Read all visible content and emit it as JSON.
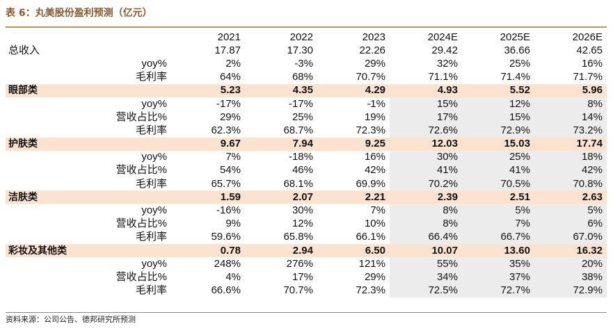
{
  "title": "表 6：丸美股份盈利预测（亿元）",
  "source": "资料来源：公司公告、德邦研究所预测",
  "columns": [
    "2021",
    "2022",
    "2023",
    "2024E",
    "2025E",
    "2026E"
  ],
  "rows": [
    {
      "label": "总收入",
      "sub": "",
      "values": [
        "17.87",
        "17.30",
        "22.26",
        "29.42",
        "36.66",
        "42.65"
      ]
    },
    {
      "label": "",
      "sub": "yoy%",
      "values": [
        "2%",
        "-3%",
        "29%",
        "32%",
        "25%",
        "16%"
      ]
    },
    {
      "label": "",
      "sub": "毛利率",
      "values": [
        "64%",
        "68%",
        "70.7%",
        "71.1%",
        "71.4%",
        "71.7%"
      ]
    },
    {
      "label": "眼部类",
      "sub": "",
      "values": [
        "5.23",
        "4.35",
        "4.29",
        "4.93",
        "5.52",
        "5.96"
      ]
    },
    {
      "label": "",
      "sub": "yoy%",
      "values": [
        "-17%",
        "-17%",
        "-1%",
        "15%",
        "12%",
        "8%"
      ]
    },
    {
      "label": "",
      "sub": "营收占比%",
      "values": [
        "29%",
        "25%",
        "19%",
        "17%",
        "15%",
        "14%"
      ]
    },
    {
      "label": "",
      "sub": "毛利率",
      "values": [
        "62.3%",
        "68.7%",
        "72.3%",
        "72.6%",
        "72.9%",
        "73.2%"
      ]
    },
    {
      "label": "护肤类",
      "sub": "",
      "values": [
        "9.67",
        "7.94",
        "9.25",
        "12.03",
        "15.03",
        "17.74"
      ]
    },
    {
      "label": "",
      "sub": "yoy%",
      "values": [
        "7%",
        "-18%",
        "16%",
        "30%",
        "25%",
        "18%"
      ]
    },
    {
      "label": "",
      "sub": "营收占比%",
      "values": [
        "54%",
        "46%",
        "42%",
        "41%",
        "41%",
        "42%"
      ]
    },
    {
      "label": "",
      "sub": "毛利率",
      "values": [
        "65.7%",
        "68.1%",
        "69.9%",
        "70.2%",
        "70.5%",
        "70.8%"
      ]
    },
    {
      "label": "洁肤类",
      "sub": "",
      "values": [
        "1.59",
        "2.07",
        "2.21",
        "2.39",
        "2.51",
        "2.63"
      ]
    },
    {
      "label": "",
      "sub": "yoy%",
      "values": [
        "-16%",
        "30%",
        "7%",
        "8%",
        "5%",
        "5%"
      ]
    },
    {
      "label": "",
      "sub": "营收占比%",
      "values": [
        "9%",
        "12%",
        "10%",
        "8%",
        "7%",
        "6%"
      ]
    },
    {
      "label": "",
      "sub": "毛利率",
      "values": [
        "59.6%",
        "65.8%",
        "66.1%",
        "66.4%",
        "66.7%",
        "67.0%"
      ]
    },
    {
      "label": "彩妆及其他类",
      "sub": "",
      "values": [
        "0.78",
        "2.94",
        "6.50",
        "10.07",
        "13.60",
        "16.32"
      ]
    },
    {
      "label": "",
      "sub": "yoy%",
      "values": [
        "248%",
        "276%",
        "121%",
        "55%",
        "35%",
        "20%"
      ]
    },
    {
      "label": "",
      "sub": "营收占比%",
      "values": [
        "4%",
        "17%",
        "29%",
        "34%",
        "37%",
        "38%"
      ]
    },
    {
      "label": "",
      "sub": "毛利率",
      "values": [
        "66.6%",
        "70.7%",
        "72.3%",
        "72.5%",
        "72.7%",
        "72.9%"
      ]
    }
  ],
  "colors": {
    "title": "#8b5a2b",
    "segment_band": "#fbe3d0",
    "forecast_shade": "#ececec"
  }
}
